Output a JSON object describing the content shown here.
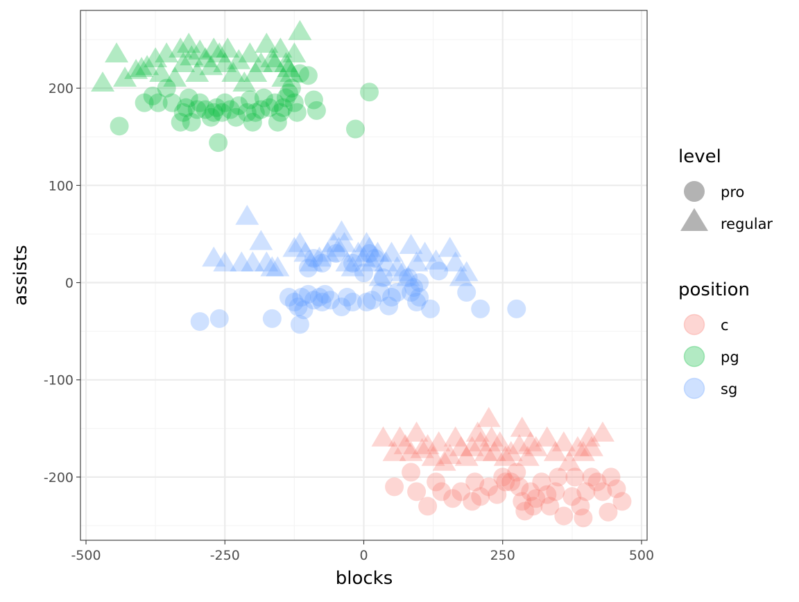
{
  "colors": {
    "c": "#F8766D",
    "pg": "#00BA38",
    "sg": "#619CFF",
    "legend_shape": "#B3B3B3",
    "grid_major": "#EBEBEB",
    "grid_minor": "#F4F4F4",
    "axis_text": "#4D4D4D"
  },
  "chart_data": {
    "type": "scatter",
    "xlabel": "blocks",
    "ylabel": "assists",
    "xlim": [
      -510,
      510
    ],
    "ylim": [
      -265,
      280
    ],
    "x_ticks": [
      -500,
      -250,
      0,
      250,
      500
    ],
    "x_tick_labels": [
      "-500",
      "-250",
      "0",
      "250",
      "500"
    ],
    "y_ticks": [
      -200,
      -100,
      0,
      100,
      200
    ],
    "y_tick_labels": [
      "-200",
      "-100",
      "0",
      "100",
      "200"
    ],
    "grid": true,
    "legend_placement": "right",
    "legend": {
      "level": {
        "title": "level",
        "entries": [
          {
            "label": "pro",
            "shape": "circle"
          },
          {
            "label": "regular",
            "shape": "triangle"
          }
        ]
      },
      "position": {
        "title": "position",
        "entries": [
          {
            "label": "c",
            "color_key": "c"
          },
          {
            "label": "pg",
            "color_key": "pg"
          },
          {
            "label": "sg",
            "color_key": "sg"
          }
        ]
      }
    },
    "series": [
      {
        "name": "pg",
        "level": "pro",
        "color_key": "pg",
        "points": [
          [
            -440,
            161
          ],
          [
            -395,
            185
          ],
          [
            -380,
            192
          ],
          [
            -370,
            185
          ],
          [
            -355,
            200
          ],
          [
            -345,
            185
          ],
          [
            -330,
            165
          ],
          [
            -325,
            175
          ],
          [
            -320,
            180
          ],
          [
            -315,
            190
          ],
          [
            -310,
            165
          ],
          [
            -300,
            178
          ],
          [
            -295,
            185
          ],
          [
            -285,
            178
          ],
          [
            -275,
            170
          ],
          [
            -270,
            175
          ],
          [
            -265,
            180
          ],
          [
            -262,
            144
          ],
          [
            -255,
            175
          ],
          [
            -250,
            185
          ],
          [
            -240,
            178
          ],
          [
            -230,
            170
          ],
          [
            -225,
            182
          ],
          [
            -210,
            175
          ],
          [
            -205,
            188
          ],
          [
            -200,
            165
          ],
          [
            -195,
            175
          ],
          [
            -185,
            178
          ],
          [
            -180,
            190
          ],
          [
            -170,
            180
          ],
          [
            -160,
            185
          ],
          [
            -155,
            165
          ],
          [
            -150,
            175
          ],
          [
            -145,
            180
          ],
          [
            -140,
            190
          ],
          [
            -135,
            195
          ],
          [
            -130,
            200
          ],
          [
            -125,
            185
          ],
          [
            -120,
            175
          ],
          [
            -115,
            215
          ],
          [
            -100,
            213
          ],
          [
            -90,
            188
          ],
          [
            -85,
            177
          ],
          [
            -15,
            158
          ],
          [
            10,
            196
          ]
        ]
      },
      {
        "name": "pg",
        "level": "regular",
        "color_key": "pg",
        "points": [
          [
            -470,
            205
          ],
          [
            -445,
            235
          ],
          [
            -430,
            210
          ],
          [
            -410,
            218
          ],
          [
            -400,
            220
          ],
          [
            -390,
            222
          ],
          [
            -375,
            230
          ],
          [
            -365,
            215
          ],
          [
            -355,
            235
          ],
          [
            -340,
            210
          ],
          [
            -330,
            240
          ],
          [
            -325,
            225
          ],
          [
            -315,
            245
          ],
          [
            -310,
            232
          ],
          [
            -300,
            215
          ],
          [
            -295,
            238
          ],
          [
            -285,
            230
          ],
          [
            -275,
            222
          ],
          [
            -270,
            240
          ],
          [
            -260,
            235
          ],
          [
            -250,
            225
          ],
          [
            -245,
            240
          ],
          [
            -235,
            215
          ],
          [
            -225,
            228
          ],
          [
            -215,
            205
          ],
          [
            -205,
            235
          ],
          [
            -195,
            215
          ],
          [
            -185,
            225
          ],
          [
            -175,
            245
          ],
          [
            -165,
            230
          ],
          [
            -160,
            225
          ],
          [
            -150,
            240
          ],
          [
            -145,
            210
          ],
          [
            -140,
            225
          ],
          [
            -135,
            220
          ],
          [
            -130,
            215
          ],
          [
            -125,
            235
          ],
          [
            -115,
            258
          ]
        ]
      },
      {
        "name": "sg",
        "level": "pro",
        "color_key": "sg",
        "points": [
          [
            -295,
            -40
          ],
          [
            -260,
            -37
          ],
          [
            -165,
            -37
          ],
          [
            -135,
            -15
          ],
          [
            -125,
            -20
          ],
          [
            -118,
            -25
          ],
          [
            -115,
            -43
          ],
          [
            -112,
            -15
          ],
          [
            -108,
            -28
          ],
          [
            -100,
            -12
          ],
          [
            -90,
            -18
          ],
          [
            -80,
            -15
          ],
          [
            -75,
            -20
          ],
          [
            -70,
            -12
          ],
          [
            -60,
            -18
          ],
          [
            -40,
            -25
          ],
          [
            -30,
            -15
          ],
          [
            -20,
            -20
          ],
          [
            5,
            -20
          ],
          [
            15,
            -18
          ],
          [
            30,
            -10
          ],
          [
            45,
            -24
          ],
          [
            50,
            -15
          ],
          [
            85,
            -10
          ],
          [
            95,
            -20
          ],
          [
            100,
            -15
          ],
          [
            120,
            -27
          ],
          [
            185,
            -10
          ],
          [
            210,
            -27
          ],
          [
            275,
            -27
          ],
          [
            -100,
            15
          ],
          [
            -90,
            25
          ],
          [
            -75,
            20
          ],
          [
            -50,
            30
          ],
          [
            -20,
            20
          ],
          [
            0,
            10
          ],
          [
            10,
            30
          ],
          [
            20,
            25
          ],
          [
            35,
            5
          ],
          [
            60,
            -10
          ],
          [
            80,
            5
          ],
          [
            90,
            -5
          ],
          [
            100,
            0
          ],
          [
            135,
            12
          ]
        ]
      },
      {
        "name": "sg",
        "level": "regular",
        "color_key": "sg",
        "points": [
          [
            -270,
            25
          ],
          [
            -250,
            20
          ],
          [
            -220,
            20
          ],
          [
            -210,
            68
          ],
          [
            -200,
            20
          ],
          [
            -185,
            42
          ],
          [
            -175,
            20
          ],
          [
            -165,
            15
          ],
          [
            -155,
            15
          ],
          [
            -125,
            35
          ],
          [
            -115,
            40
          ],
          [
            -105,
            30
          ],
          [
            -95,
            20
          ],
          [
            -80,
            25
          ],
          [
            -65,
            30
          ],
          [
            -55,
            40
          ],
          [
            -45,
            35
          ],
          [
            -40,
            52
          ],
          [
            -35,
            40
          ],
          [
            -30,
            20
          ],
          [
            -20,
            15
          ],
          [
            -10,
            30
          ],
          [
            0,
            25
          ],
          [
            5,
            40
          ],
          [
            10,
            35
          ],
          [
            15,
            20
          ],
          [
            25,
            30
          ],
          [
            30,
            5
          ],
          [
            40,
            20
          ],
          [
            50,
            30
          ],
          [
            60,
            15
          ],
          [
            70,
            10
          ],
          [
            80,
            5
          ],
          [
            85,
            38
          ],
          [
            95,
            20
          ],
          [
            110,
            30
          ],
          [
            130,
            22
          ],
          [
            155,
            35
          ],
          [
            165,
            20
          ],
          [
            175,
            5
          ],
          [
            185,
            10
          ]
        ]
      },
      {
        "name": "c",
        "level": "pro",
        "color_key": "c",
        "points": [
          [
            55,
            -210
          ],
          [
            85,
            -195
          ],
          [
            95,
            -215
          ],
          [
            115,
            -230
          ],
          [
            130,
            -205
          ],
          [
            140,
            -215
          ],
          [
            160,
            -222
          ],
          [
            175,
            -215
          ],
          [
            195,
            -225
          ],
          [
            200,
            -205
          ],
          [
            210,
            -220
          ],
          [
            225,
            -210
          ],
          [
            240,
            -218
          ],
          [
            250,
            -200
          ],
          [
            255,
            -205
          ],
          [
            265,
            -205
          ],
          [
            275,
            -195
          ],
          [
            280,
            -210
          ],
          [
            285,
            -225
          ],
          [
            290,
            -235
          ],
          [
            300,
            -215
          ],
          [
            305,
            -230
          ],
          [
            310,
            -222
          ],
          [
            320,
            -205
          ],
          [
            330,
            -218
          ],
          [
            335,
            -230
          ],
          [
            345,
            -215
          ],
          [
            350,
            -200
          ],
          [
            360,
            -240
          ],
          [
            375,
            -220
          ],
          [
            380,
            -200
          ],
          [
            390,
            -230
          ],
          [
            395,
            -242
          ],
          [
            400,
            -215
          ],
          [
            410,
            -200
          ],
          [
            420,
            -205
          ],
          [
            430,
            -215
          ],
          [
            440,
            -236
          ],
          [
            445,
            -200
          ],
          [
            455,
            -212
          ],
          [
            465,
            -225
          ]
        ]
      },
      {
        "name": "c",
        "level": "regular",
        "color_key": "c",
        "points": [
          [
            35,
            -160
          ],
          [
            55,
            -175
          ],
          [
            65,
            -160
          ],
          [
            75,
            -168
          ],
          [
            85,
            -175
          ],
          [
            95,
            -155
          ],
          [
            105,
            -172
          ],
          [
            115,
            -168
          ],
          [
            125,
            -180
          ],
          [
            135,
            -165
          ],
          [
            145,
            -185
          ],
          [
            155,
            -178
          ],
          [
            165,
            -160
          ],
          [
            175,
            -170
          ],
          [
            185,
            -180
          ],
          [
            195,
            -170
          ],
          [
            205,
            -155
          ],
          [
            210,
            -165
          ],
          [
            220,
            -175
          ],
          [
            225,
            -140
          ],
          [
            230,
            -160
          ],
          [
            235,
            -175
          ],
          [
            245,
            -165
          ],
          [
            255,
            -180
          ],
          [
            265,
            -175
          ],
          [
            280,
            -168
          ],
          [
            285,
            -150
          ],
          [
            295,
            -180
          ],
          [
            300,
            -165
          ],
          [
            310,
            -170
          ],
          [
            330,
            -160
          ],
          [
            345,
            -175
          ],
          [
            360,
            -165
          ],
          [
            370,
            -185
          ],
          [
            385,
            -170
          ],
          [
            395,
            -175
          ],
          [
            405,
            -160
          ],
          [
            410,
            -170
          ],
          [
            430,
            -155
          ]
        ]
      }
    ]
  }
}
